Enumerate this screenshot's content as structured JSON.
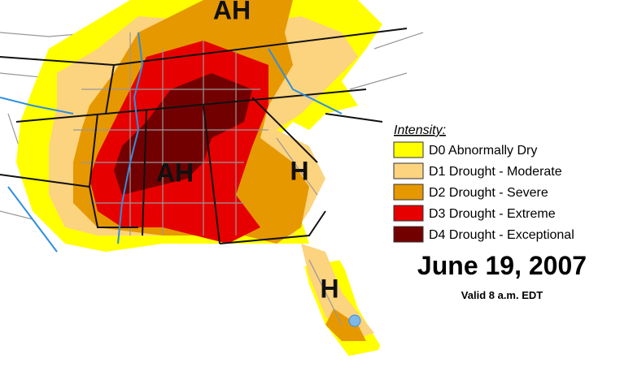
{
  "map": {
    "labels": [
      "AH",
      "AH",
      "H",
      "H"
    ]
  },
  "legend": {
    "title": "Intensity:",
    "items": [
      {
        "label": "D0 Abnormally Dry",
        "color": "#ffff00"
      },
      {
        "label": "D1 Drought - Moderate",
        "color": "#fcd37f"
      },
      {
        "label": "D2 Drought - Severe",
        "color": "#e69800"
      },
      {
        "label": "D3 Drought - Extreme",
        "color": "#e60000"
      },
      {
        "label": "D4 Drought - Exceptional",
        "color": "#730000"
      }
    ]
  },
  "date": "June 19, 2007",
  "valid": "Valid 8 a.m. EDT"
}
